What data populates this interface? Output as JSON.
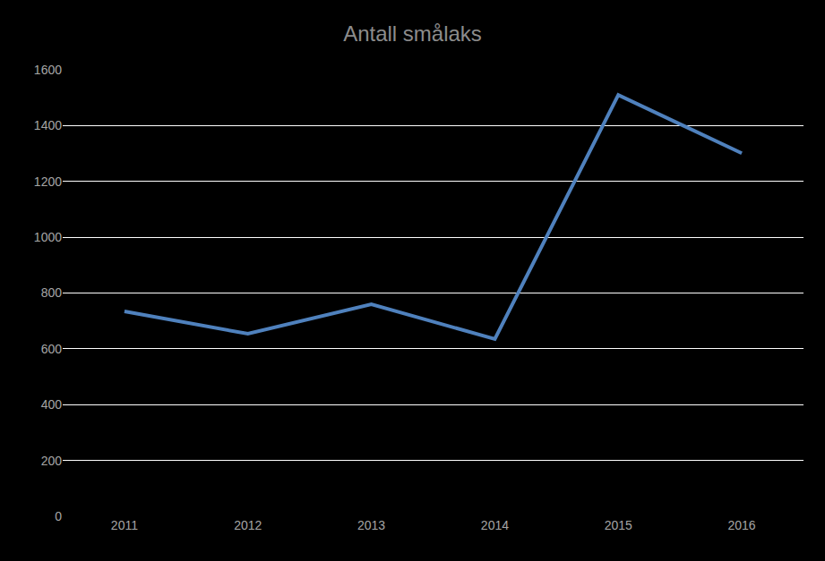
{
  "chart_data": {
    "type": "line",
    "title": "Antall smålaks",
    "categories": [
      "2011",
      "2012",
      "2013",
      "2014",
      "2015",
      "2016"
    ],
    "values": [
      734,
      654,
      760,
      635,
      1510,
      1301
    ],
    "color": "#4f81bd",
    "ylim": [
      0,
      1600
    ],
    "yticks": [
      0,
      200,
      400,
      600,
      800,
      1000,
      1200,
      1400,
      1600
    ],
    "grid": true
  }
}
